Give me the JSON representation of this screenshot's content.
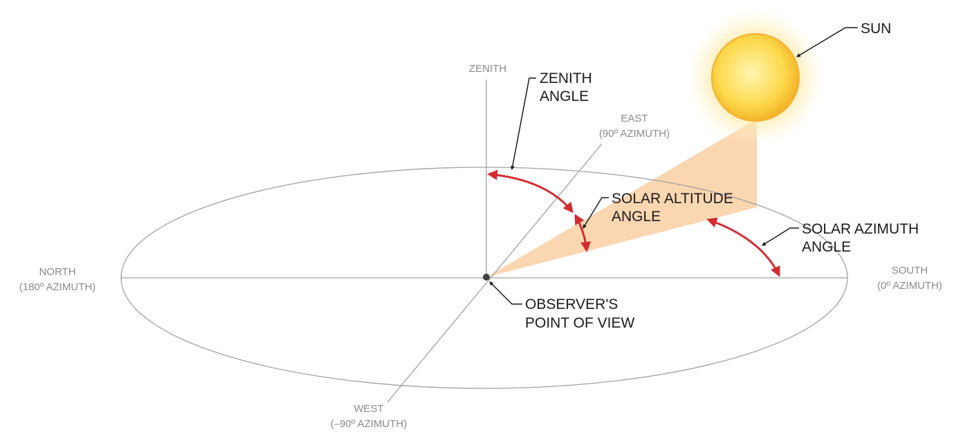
{
  "directions": {
    "zenith": [
      "ZENITH"
    ],
    "east": [
      "EAST",
      "(90º AZIMUTH)"
    ],
    "north": [
      "NORTH",
      "(180º AZIMUTH)"
    ],
    "south": [
      "SOUTH",
      "(0º AZIMUTH)"
    ],
    "west": [
      "WEST",
      "(–90º AZIMUTH)"
    ]
  },
  "labels": {
    "sun": [
      "SUN"
    ],
    "zenith_angle": [
      "ZENITH",
      "ANGLE"
    ],
    "solar_altitude_angle": [
      "SOLAR ALTITUDE",
      "ANGLE"
    ],
    "solar_azimuth_angle": [
      "SOLAR AZIMUTH",
      "ANGLE"
    ],
    "observer": [
      "OBSERVER'S",
      "POINT OF VIEW"
    ]
  }
}
